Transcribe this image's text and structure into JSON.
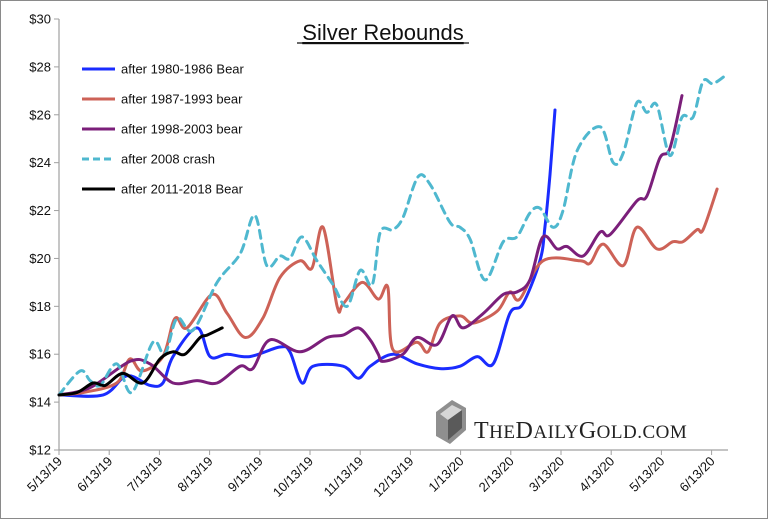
{
  "chart_data": {
    "type": "line",
    "title": "Silver Rebounds",
    "xlabel": "",
    "ylabel": "",
    "x_units": "months since 5/13/19",
    "xlim": [
      0,
      13.4
    ],
    "ylim": [
      12,
      30
    ],
    "y_ticks": [
      12,
      14,
      16,
      18,
      20,
      22,
      24,
      26,
      28,
      30
    ],
    "y_tick_labels": [
      "$12",
      "$14",
      "$16",
      "$18",
      "$20",
      "$22",
      "$24",
      "$26",
      "$28",
      "$30"
    ],
    "x_tick_labels": [
      "5/13/19",
      "6/13/19",
      "7/13/19",
      "8/13/19",
      "9/13/19",
      "10/13/19",
      "11/13/19",
      "12/13/19",
      "1/13/20",
      "2/13/20",
      "3/13/20",
      "4/13/20",
      "5/13/20",
      "6/13/20"
    ],
    "grid": false,
    "legend_position": "top-left",
    "series": [
      {
        "name": "after 1980-1986 Bear",
        "color": "#1a2cff",
        "dash": false,
        "points": [
          [
            0,
            14.3
          ],
          [
            0.88,
            14.3
          ],
          [
            1.35,
            15.1
          ],
          [
            1.81,
            14.7
          ],
          [
            2.07,
            14.8
          ],
          [
            2.27,
            15.9
          ],
          [
            2.75,
            17.1
          ],
          [
            3.01,
            15.9
          ],
          [
            3.35,
            16.0
          ],
          [
            3.8,
            15.9
          ],
          [
            4.4,
            16.3
          ],
          [
            4.6,
            16.1
          ],
          [
            4.84,
            14.8
          ],
          [
            5.06,
            15.5
          ],
          [
            5.66,
            15.5
          ],
          [
            5.96,
            15.0
          ],
          [
            6.2,
            15.5
          ],
          [
            6.65,
            16.0
          ],
          [
            7.13,
            15.6
          ],
          [
            7.59,
            15.4
          ],
          [
            7.99,
            15.5
          ],
          [
            8.33,
            15.9
          ],
          [
            8.65,
            15.6
          ],
          [
            8.98,
            17.7
          ],
          [
            9.24,
            18.1
          ],
          [
            9.58,
            19.9
          ],
          [
            9.68,
            21.3
          ],
          [
            9.78,
            23.5
          ],
          [
            9.88,
            26.2
          ]
        ]
      },
      {
        "name": "after 1987-1993 bear",
        "color": "#cd6257",
        "dash": false,
        "points": [
          [
            0,
            14.3
          ],
          [
            0.48,
            14.4
          ],
          [
            1.15,
            14.8
          ],
          [
            1.41,
            15.8
          ],
          [
            1.65,
            15.3
          ],
          [
            2.07,
            15.9
          ],
          [
            2.31,
            17.5
          ],
          [
            2.55,
            17.1
          ],
          [
            3.05,
            18.5
          ],
          [
            3.35,
            17.7
          ],
          [
            3.71,
            16.7
          ],
          [
            4.06,
            17.5
          ],
          [
            4.4,
            19.2
          ],
          [
            4.8,
            19.9
          ],
          [
            5.04,
            19.6
          ],
          [
            5.26,
            21.3
          ],
          [
            5.54,
            18.0
          ],
          [
            5.66,
            18.1
          ],
          [
            6.04,
            19.0
          ],
          [
            6.36,
            18.3
          ],
          [
            6.55,
            18.8
          ],
          [
            6.65,
            16.2
          ],
          [
            7.13,
            16.5
          ],
          [
            7.35,
            16.1
          ],
          [
            7.59,
            17.3
          ],
          [
            7.99,
            17.6
          ],
          [
            8.25,
            17.3
          ],
          [
            8.73,
            17.8
          ],
          [
            8.98,
            18.6
          ],
          [
            9.18,
            18.3
          ],
          [
            9.64,
            19.9
          ],
          [
            10.38,
            19.9
          ],
          [
            10.58,
            19.8
          ],
          [
            10.84,
            20.6
          ],
          [
            11.24,
            19.7
          ],
          [
            11.51,
            21.3
          ],
          [
            11.91,
            20.4
          ],
          [
            12.23,
            20.7
          ],
          [
            12.43,
            20.7
          ],
          [
            12.71,
            21.2
          ],
          [
            12.83,
            21.2
          ],
          [
            13.11,
            22.9
          ]
        ]
      },
      {
        "name": "after 1998-2003 bear",
        "color": "#7b1f7a",
        "dash": false,
        "points": [
          [
            0,
            14.3
          ],
          [
            0.62,
            14.6
          ],
          [
            1.41,
            15.7
          ],
          [
            1.81,
            15.6
          ],
          [
            2.27,
            14.8
          ],
          [
            2.75,
            14.9
          ],
          [
            3.15,
            14.8
          ],
          [
            3.61,
            15.5
          ],
          [
            3.86,
            15.4
          ],
          [
            4.2,
            16.6
          ],
          [
            4.8,
            16.1
          ],
          [
            5.34,
            16.7
          ],
          [
            5.66,
            16.8
          ],
          [
            5.96,
            17.1
          ],
          [
            6.2,
            16.6
          ],
          [
            6.36,
            16.0
          ],
          [
            6.45,
            15.7
          ],
          [
            6.85,
            16.0
          ],
          [
            7.13,
            16.7
          ],
          [
            7.53,
            16.4
          ],
          [
            7.83,
            17.6
          ],
          [
            8.05,
            17.1
          ],
          [
            8.45,
            17.7
          ],
          [
            8.85,
            18.5
          ],
          [
            9.12,
            18.6
          ],
          [
            9.38,
            19.1
          ],
          [
            9.64,
            20.9
          ],
          [
            9.92,
            20.4
          ],
          [
            10.12,
            20.5
          ],
          [
            10.44,
            20.1
          ],
          [
            10.78,
            21.1
          ],
          [
            10.98,
            21.0
          ],
          [
            11.51,
            22.4
          ],
          [
            11.71,
            22.6
          ],
          [
            11.97,
            24.2
          ],
          [
            12.17,
            24.6
          ],
          [
            12.41,
            26.8
          ]
        ]
      },
      {
        "name": "after 2008 crash",
        "color": "#4fb8cf",
        "dash": true,
        "points": [
          [
            0,
            14.3
          ],
          [
            0.42,
            15.3
          ],
          [
            0.62,
            14.9
          ],
          [
            0.82,
            14.7
          ],
          [
            1.15,
            15.6
          ],
          [
            1.45,
            14.4
          ],
          [
            1.87,
            16.5
          ],
          [
            2.11,
            16.0
          ],
          [
            2.35,
            17.5
          ],
          [
            2.67,
            17.0
          ],
          [
            3.15,
            19.0
          ],
          [
            3.61,
            20.2
          ],
          [
            3.9,
            21.8
          ],
          [
            4.14,
            19.7
          ],
          [
            4.4,
            20.1
          ],
          [
            4.6,
            20.0
          ],
          [
            4.84,
            20.9
          ],
          [
            5.14,
            19.9
          ],
          [
            5.46,
            18.9
          ],
          [
            5.74,
            18.0
          ],
          [
            6.0,
            19.5
          ],
          [
            6.24,
            18.9
          ],
          [
            6.4,
            21.1
          ],
          [
            6.65,
            21.2
          ],
          [
            6.85,
            21.7
          ],
          [
            7.15,
            23.4
          ],
          [
            7.39,
            23.1
          ],
          [
            7.79,
            21.5
          ],
          [
            7.99,
            21.3
          ],
          [
            8.19,
            20.8
          ],
          [
            8.49,
            19.1
          ],
          [
            8.85,
            20.7
          ],
          [
            9.12,
            20.9
          ],
          [
            9.38,
            21.9
          ],
          [
            9.58,
            22.1
          ],
          [
            9.84,
            21.3
          ],
          [
            10.04,
            22.0
          ],
          [
            10.32,
            24.5
          ],
          [
            10.78,
            25.5
          ],
          [
            11.04,
            24.0
          ],
          [
            11.24,
            24.4
          ],
          [
            11.51,
            26.5
          ],
          [
            11.71,
            26.1
          ],
          [
            11.91,
            26.4
          ],
          [
            12.17,
            24.3
          ],
          [
            12.41,
            25.9
          ],
          [
            12.63,
            25.9
          ],
          [
            12.83,
            27.4
          ],
          [
            13.03,
            27.3
          ],
          [
            13.31,
            27.7
          ]
        ]
      },
      {
        "name": "after 2011-2018 Bear",
        "color": "#000000",
        "dash": false,
        "points": [
          [
            0,
            14.3
          ],
          [
            0.36,
            14.4
          ],
          [
            0.68,
            14.8
          ],
          [
            0.92,
            14.7
          ],
          [
            1.27,
            15.2
          ],
          [
            1.67,
            14.8
          ],
          [
            2.01,
            15.8
          ],
          [
            2.27,
            16.1
          ],
          [
            2.51,
            16.0
          ],
          [
            2.81,
            16.7
          ],
          [
            2.95,
            16.8
          ],
          [
            3.25,
            17.1
          ]
        ]
      }
    ]
  },
  "watermark": {
    "text": "THEDAILYGOLD.COM"
  }
}
